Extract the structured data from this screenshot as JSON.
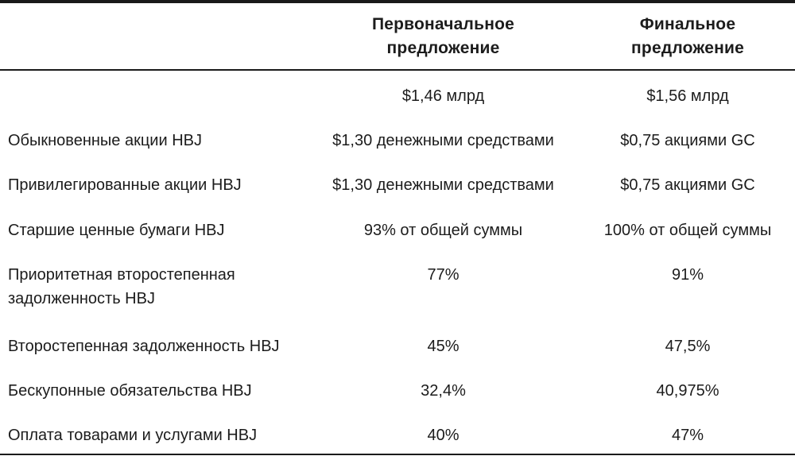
{
  "table": {
    "headers": [
      "",
      "Первоначальное предложение",
      "Финальное предложение"
    ],
    "header_lines": {
      "initial": [
        "Первоначальное",
        "предложение"
      ],
      "final": [
        "Финальное",
        "предложение"
      ]
    },
    "rows": [
      {
        "label": "",
        "initial": "$1,46 млрд",
        "final": "$1,56 млрд"
      },
      {
        "label": "Обыкновенные акции HBJ",
        "initial": "$1,30 денежными средствами",
        "final": "$0,75 акциями GC"
      },
      {
        "label": "Привилегированные акции HBJ",
        "initial": "$1,30 денежными средствами",
        "final": "$0,75 акциями GC"
      },
      {
        "label": "Старшие ценные бумаги HBJ",
        "initial": "93% от общей суммы",
        "final": "100% от общей суммы"
      },
      {
        "label_lines": [
          "Приоритетная второстепенная",
          "задолженность HBJ"
        ],
        "initial": "77%",
        "final": "91%"
      },
      {
        "label": "Второстепенная задолженность HBJ",
        "initial": "45%",
        "final": "47,5%"
      },
      {
        "label": "Бескупонные обязательства HBJ",
        "initial": "32,4%",
        "final": "40,975%"
      },
      {
        "label": "Оплата товарами и услугами HBJ",
        "initial": "40%",
        "final": "47%"
      }
    ]
  }
}
